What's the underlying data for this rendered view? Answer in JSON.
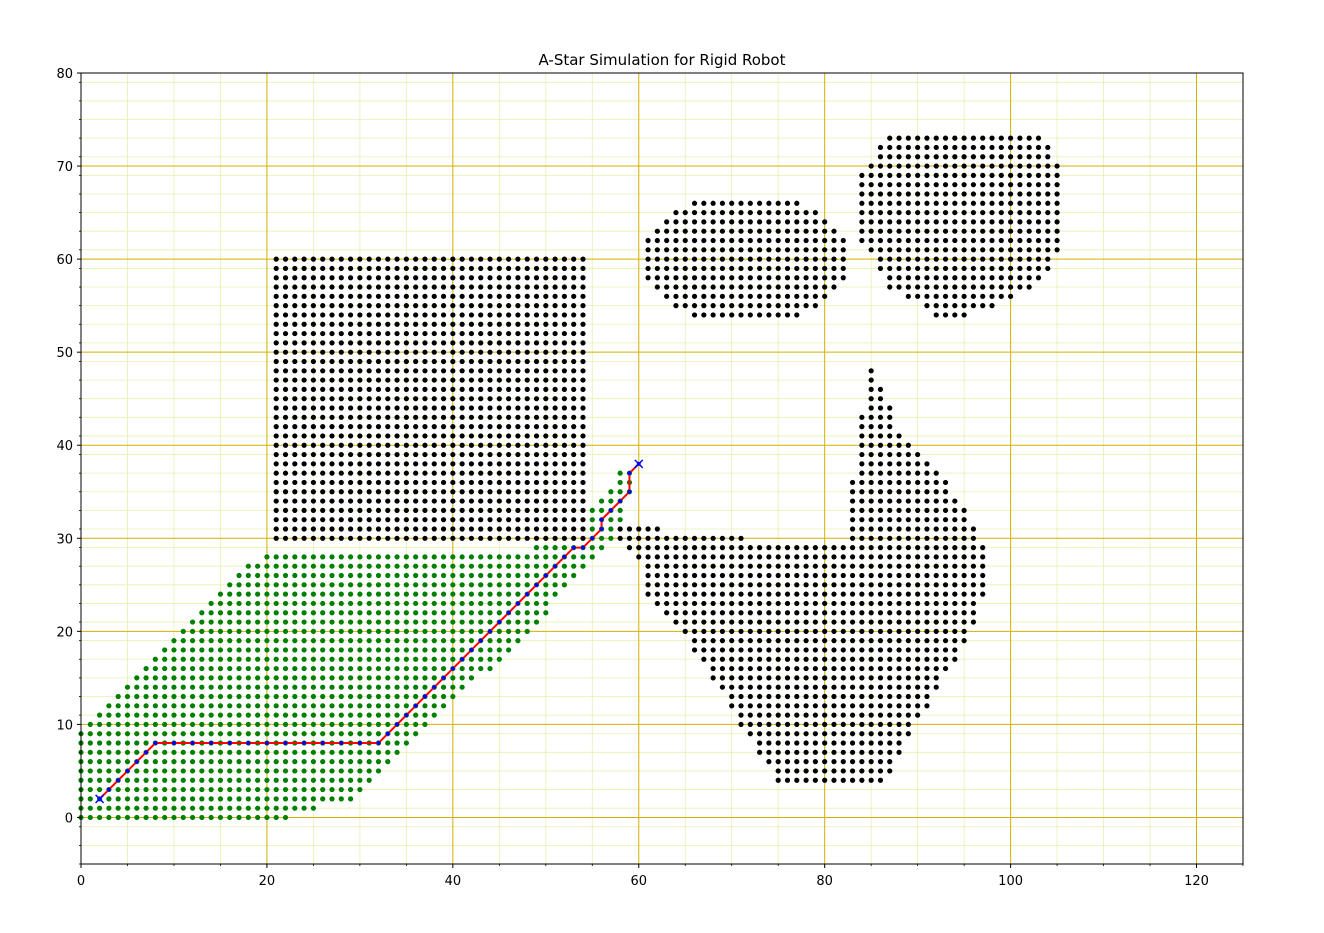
{
  "chart_data": {
    "type": "scatter",
    "title": "A-Star Simulation for Rigid Robot",
    "xlabel": "",
    "ylabel": "",
    "xlim": [
      0,
      125
    ],
    "ylim": [
      -5,
      80
    ],
    "x_major_ticks": [
      0,
      20,
      40,
      60,
      80,
      100,
      120
    ],
    "y_major_ticks": [
      0,
      10,
      20,
      30,
      40,
      50,
      60,
      70,
      80
    ],
    "x_minor_step": 5,
    "y_minor_step": 2,
    "grid": true,
    "legend": "none",
    "colors": {
      "obstacle": "#000000",
      "explored": "#008000",
      "path_line": "#ff0000",
      "path_point": "#0000ff",
      "major_grid": "#d4b000",
      "minor_grid": "#e6f0b0"
    },
    "obstacles": [
      {
        "shape": "rectangle",
        "x": [
          21,
          54
        ],
        "y": [
          30,
          60
        ]
      },
      {
        "shape": "ellipse",
        "center": [
          71.5,
          60
        ],
        "radius": [
          11,
          7
        ]
      },
      {
        "shape": "polygon",
        "points": [
          [
            87,
            74
          ],
          [
            103,
            74
          ],
          [
            106,
            69
          ],
          [
            106,
            62
          ],
          [
            103,
            57
          ],
          [
            96,
            54
          ],
          [
            92,
            54
          ],
          [
            87,
            57
          ],
          [
            84,
            62
          ],
          [
            84,
            69
          ]
        ]
      },
      {
        "shape": "polygon",
        "points": [
          [
            58,
            32
          ],
          [
            63,
            32
          ],
          [
            63,
            31
          ],
          [
            72,
            31
          ],
          [
            72,
            30
          ],
          [
            83,
            30
          ],
          [
            83,
            36
          ],
          [
            84,
            43
          ],
          [
            85,
            49
          ],
          [
            88,
            42
          ],
          [
            94,
            35
          ],
          [
            97,
            30
          ],
          [
            98,
            26
          ],
          [
            96,
            20
          ],
          [
            93,
            15
          ],
          [
            90,
            10
          ],
          [
            88,
            6
          ],
          [
            87,
            4
          ],
          [
            75,
            4
          ],
          [
            71,
            10
          ],
          [
            66,
            18
          ],
          [
            61,
            24
          ],
          [
            60,
            28
          ],
          [
            58,
            30
          ]
        ]
      }
    ],
    "explored_region": {
      "points": [
        [
          0,
          0
        ],
        [
          22,
          0
        ],
        [
          25,
          1
        ],
        [
          29,
          2
        ],
        [
          33,
          5
        ],
        [
          38,
          10
        ],
        [
          43,
          15
        ],
        [
          47,
          19
        ],
        [
          51,
          23
        ],
        [
          54,
          27
        ],
        [
          58,
          31
        ],
        [
          60,
          38
        ],
        [
          58,
          37
        ],
        [
          54,
          32
        ],
        [
          53,
          30
        ],
        [
          49,
          29
        ],
        [
          21,
          29
        ],
        [
          18,
          27
        ],
        [
          12,
          21
        ],
        [
          6,
          15
        ],
        [
          2,
          11
        ],
        [
          0,
          9
        ]
      ]
    },
    "path": {
      "x": [
        2,
        3,
        4,
        5,
        6,
        7,
        8,
        10,
        12,
        14,
        16,
        18,
        20,
        22,
        24,
        26,
        28,
        30,
        32,
        33,
        34,
        35,
        36,
        37,
        38,
        39,
        40,
        41,
        42,
        43,
        44,
        45,
        46,
        47,
        48,
        49,
        50,
        51,
        52,
        53,
        54,
        55,
        56,
        56,
        57,
        58,
        59,
        59,
        60
      ],
      "y": [
        2,
        3,
        4,
        5,
        6,
        7,
        8,
        8,
        8,
        8,
        8,
        8,
        8,
        8,
        8,
        8,
        8,
        8,
        8,
        9,
        10,
        11,
        12,
        13,
        14,
        15,
        16,
        17,
        18,
        19,
        20,
        21,
        22,
        23,
        24,
        25,
        26,
        27,
        28,
        29,
        29,
        30,
        31,
        32,
        33,
        34,
        35,
        37,
        38
      ]
    },
    "start": [
      2,
      2
    ],
    "goal": [
      60,
      38
    ]
  }
}
